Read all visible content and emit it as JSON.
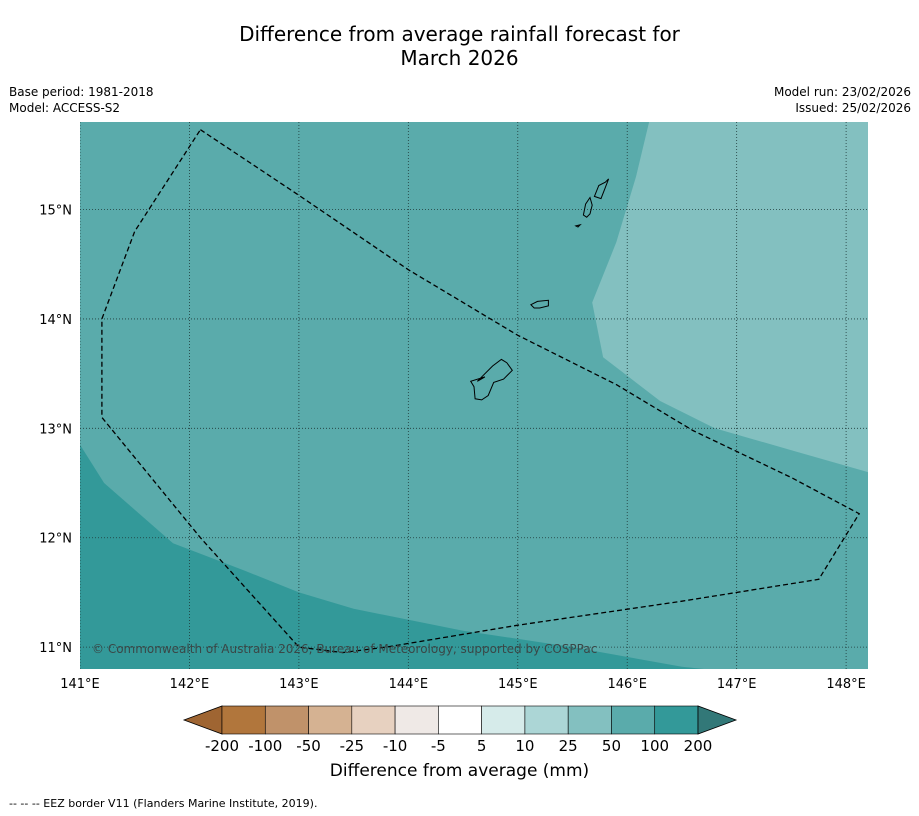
{
  "title": {
    "line1": "Difference from average rainfall forecast for",
    "line2": "March 2026"
  },
  "header": {
    "base_period": "Base period: 1981-2018",
    "model": "Model: ACCESS-S2",
    "model_run": "Model run: 23/02/2026",
    "issued": "Issued: 25/02/2026"
  },
  "map": {
    "lon_range": [
      141.0,
      148.2
    ],
    "lat_range": [
      10.8,
      15.8
    ],
    "lon_ticks": [
      {
        "v": 141,
        "label": "141°E"
      },
      {
        "v": 142,
        "label": "142°E"
      },
      {
        "v": 143,
        "label": "143°E"
      },
      {
        "v": 144,
        "label": "144°E"
      },
      {
        "v": 145,
        "label": "145°E"
      },
      {
        "v": 146,
        "label": "146°E"
      },
      {
        "v": 147,
        "label": "147°E"
      },
      {
        "v": 148,
        "label": "148°E"
      }
    ],
    "lat_ticks": [
      {
        "v": 15,
        "label": "15°N"
      },
      {
        "v": 14,
        "label": "14°N"
      },
      {
        "v": 13,
        "label": "13°N"
      },
      {
        "v": 12,
        "label": "12°N"
      },
      {
        "v": 11,
        "label": "11°N"
      }
    ],
    "gridlines": true,
    "copyright": "© Commonwealth of Australia 2026, Bureau of Meteorology, supported by COSPPac",
    "regions": {
      "50_to_100_color": "#5aabab",
      "25_to_50_color": "#83c0c0",
      "100_to_200_color": "#339999",
      "band_25_50_boundary": [
        [
          146.2,
          15.8
        ],
        [
          146.08,
          15.3
        ],
        [
          145.9,
          14.7
        ],
        [
          145.68,
          14.15
        ],
        [
          145.78,
          13.65
        ],
        [
          146.3,
          13.25
        ],
        [
          146.8,
          13.0
        ],
        [
          147.5,
          12.8
        ],
        [
          148.2,
          12.6
        ]
      ],
      "band_100_200_boundary": [
        [
          141.0,
          12.85
        ],
        [
          141.22,
          12.5
        ],
        [
          141.85,
          11.95
        ],
        [
          142.5,
          11.7
        ],
        [
          143.0,
          11.5
        ],
        [
          143.5,
          11.35
        ],
        [
          144.5,
          11.15
        ],
        [
          145.5,
          11.0
        ],
        [
          146.5,
          10.82
        ],
        [
          146.7,
          10.8
        ]
      ]
    },
    "eez_border": [
      [
        142.1,
        15.73
      ],
      [
        143.0,
        15.13
      ],
      [
        144.0,
        14.45
      ],
      [
        145.0,
        13.85
      ],
      [
        145.9,
        13.4
      ],
      [
        146.6,
        12.98
      ],
      [
        147.5,
        12.55
      ],
      [
        148.12,
        12.22
      ],
      [
        147.75,
        11.62
      ],
      [
        146.5,
        11.42
      ],
      [
        145.0,
        11.2
      ],
      [
        143.8,
        11.0
      ],
      [
        143.4,
        10.95
      ],
      [
        143.0,
        11.0
      ],
      [
        142.1,
        12.0
      ],
      [
        141.2,
        13.1
      ],
      [
        141.2,
        14.0
      ],
      [
        141.5,
        14.8
      ],
      [
        142.1,
        15.73
      ]
    ],
    "islands": [
      {
        "name": "guam",
        "pts": [
          [
            144.63,
            13.43
          ],
          [
            144.77,
            13.57
          ],
          [
            144.85,
            13.63
          ],
          [
            144.9,
            13.6
          ],
          [
            144.95,
            13.53
          ],
          [
            144.87,
            13.45
          ],
          [
            144.78,
            13.42
          ],
          [
            144.73,
            13.3
          ],
          [
            144.67,
            13.26
          ],
          [
            144.61,
            13.27
          ],
          [
            144.6,
            13.38
          ],
          [
            144.57,
            13.43
          ],
          [
            144.7,
            13.47
          ]
        ]
      },
      {
        "name": "rota",
        "pts": [
          [
            145.12,
            14.13
          ],
          [
            145.18,
            14.16
          ],
          [
            145.28,
            14.17
          ],
          [
            145.28,
            14.12
          ],
          [
            145.2,
            14.1
          ],
          [
            145.15,
            14.1
          ]
        ]
      },
      {
        "name": "tinian",
        "pts": [
          [
            145.6,
            14.95
          ],
          [
            145.62,
            15.05
          ],
          [
            145.66,
            15.11
          ],
          [
            145.68,
            15.04
          ],
          [
            145.66,
            14.96
          ],
          [
            145.63,
            14.93
          ]
        ]
      },
      {
        "name": "saipan",
        "pts": [
          [
            145.7,
            15.12
          ],
          [
            145.74,
            15.22
          ],
          [
            145.8,
            15.25
          ],
          [
            145.83,
            15.28
          ],
          [
            145.8,
            15.2
          ],
          [
            145.76,
            15.1
          ]
        ]
      },
      {
        "name": "aguijan",
        "pts": [
          [
            145.53,
            14.85
          ],
          [
            145.57,
            14.86
          ],
          [
            145.55,
            14.84
          ]
        ]
      }
    ]
  },
  "colorbar": {
    "ticks": [
      "-200",
      "-100",
      "-50",
      "-25",
      "-10",
      "-5",
      "5",
      "10",
      "25",
      "50",
      "100",
      "200"
    ],
    "colors": [
      "#9f6532",
      "#b1763c",
      "#c0926a",
      "#d5b292",
      "#e7d1c0",
      "#efe9e6",
      "#ffffff",
      "#d6ebea",
      "#acd6d6",
      "#83c0c0",
      "#5aabab",
      "#339999",
      "#327878"
    ],
    "label": "Difference from average (mm)"
  },
  "footnote": "--  --  -- EEZ border V11 (Flanders Marine Institute, 2019)."
}
